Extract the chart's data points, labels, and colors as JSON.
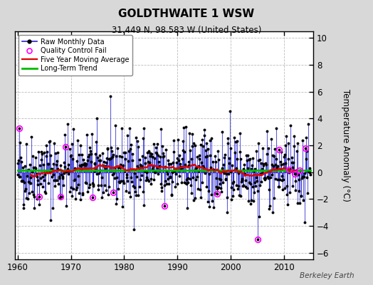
{
  "title": "GOLDTHWAITE 1 WSW",
  "subtitle": "31.449 N, 98.583 W (United States)",
  "ylabel": "Temperature Anomaly (°C)",
  "watermark": "Berkeley Earth",
  "xlim": [
    1959.5,
    2015.5
  ],
  "ylim": [
    -6.5,
    10.5
  ],
  "yticks": [
    -6,
    -4,
    -2,
    0,
    2,
    4,
    6,
    8,
    10
  ],
  "xticks": [
    1960,
    1970,
    1980,
    1990,
    2000,
    2010
  ],
  "bg_color": "#d8d8d8",
  "plot_bg_color": "#ffffff",
  "raw_color": "#2222cc",
  "raw_fill_color": "#8888ee",
  "dot_color": "#000000",
  "moving_avg_color": "#dd0000",
  "trend_color": "#00bb00",
  "qc_fail_color": "#ff00ff",
  "seed": 42,
  "start_year": 1960,
  "end_year": 2014,
  "moving_avg_window": 60,
  "qc_fail_indices": [
    3,
    48,
    96,
    108,
    168,
    216,
    330,
    450,
    540,
    588,
    612,
    624,
    636,
    648,
    660
  ],
  "qc_fail_values": [
    3.3,
    -1.8,
    -1.8,
    1.9,
    -1.9,
    -1.5,
    -2.5,
    -1.6,
    -5.0,
    1.7,
    0.2,
    -0.1,
    0.15,
    1.8,
    0.0
  ]
}
